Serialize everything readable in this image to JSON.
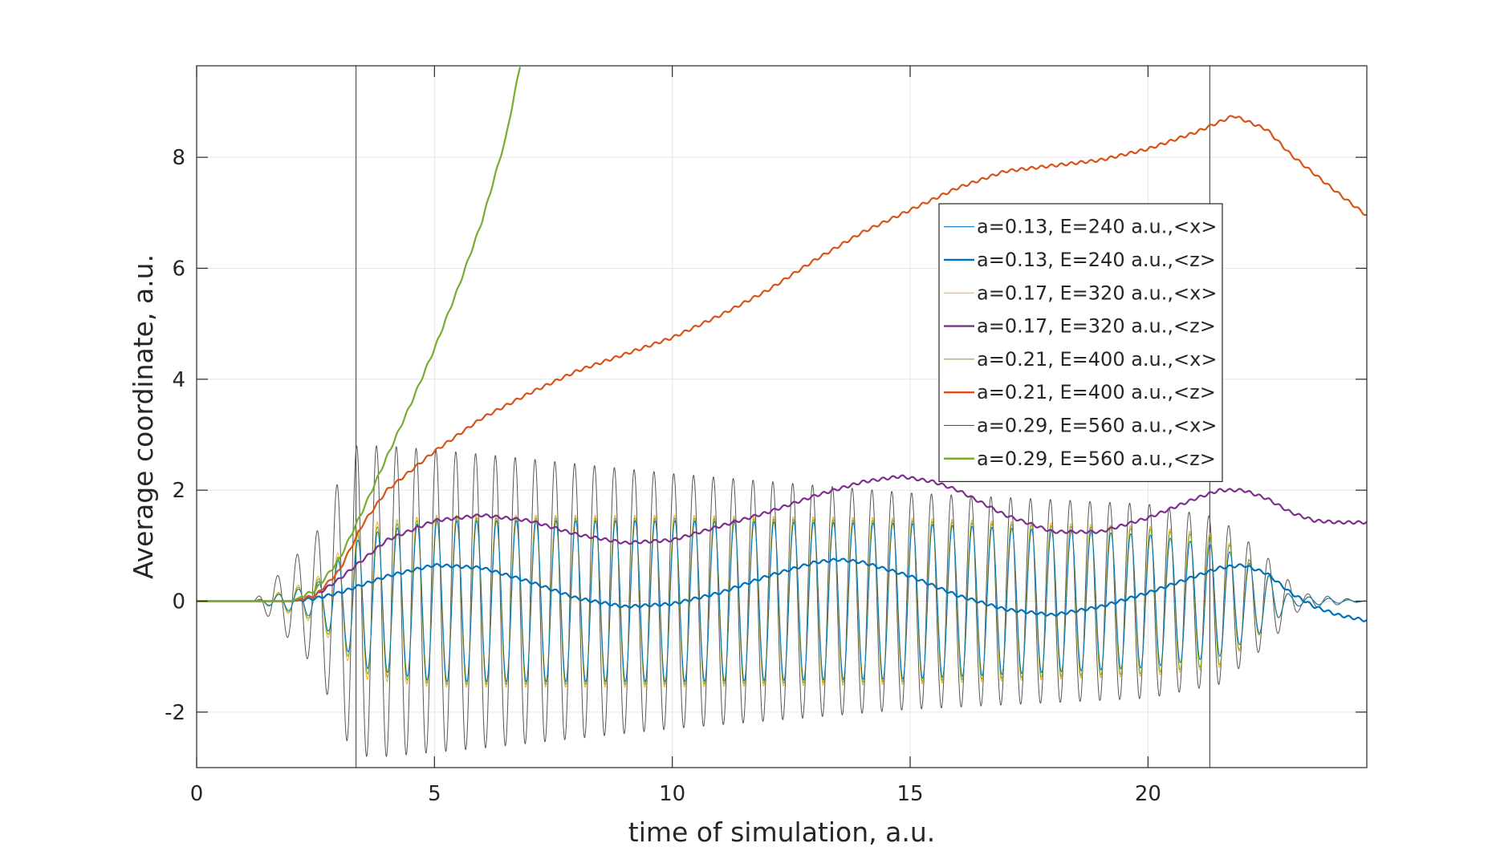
{
  "chart_data": {
    "type": "line",
    "title": "",
    "xlabel": "time of simulation, a.u.",
    "ylabel": "Average coordinate, a.u.",
    "xlim": [
      0,
      24.6
    ],
    "ylim": [
      -3,
      9.65
    ],
    "xticks": [
      0,
      5,
      10,
      15,
      20
    ],
    "xtick_labels": [
      "0",
      "5",
      "10",
      "15",
      "20"
    ],
    "yticks": [
      -2,
      0,
      2,
      4,
      6,
      8
    ],
    "ytick_labels": [
      "-2",
      "0",
      "2",
      "4",
      "6",
      "8"
    ],
    "grid": true,
    "legend_position": "right-center, upper area",
    "vertical_markers": [
      3.35,
      21.3
    ],
    "series": [
      {
        "name": "a=0.13, E=240 a.u.,<x>",
        "color": "#0072BD",
        "width": "thin",
        "kind": "oscillation",
        "envelope": {
          "t": [
            1.2,
            2.5,
            3.5,
            5,
            10,
            15,
            20,
            21.5,
            22.5,
            23,
            24.6
          ],
          "amp": [
            0,
            0.3,
            1.2,
            1.45,
            1.45,
            1.4,
            1.2,
            1.0,
            0.5,
            0.1,
            0
          ]
        },
        "frequency": 2.4
      },
      {
        "name": "a=0.13, E=240 a.u.,<z>",
        "color": "#0072BD",
        "width": "thick",
        "kind": "drift",
        "t": [
          0,
          2.0,
          2.5,
          3,
          4,
          5,
          6,
          7,
          8,
          9,
          10,
          11,
          12,
          13,
          13.5,
          14,
          15,
          16,
          17,
          18,
          19,
          20,
          21,
          21.5,
          22,
          22.5,
          23,
          23.5,
          24,
          24.6
        ],
        "v": [
          0,
          0,
          0.05,
          0.15,
          0.45,
          0.65,
          0.6,
          0.35,
          0.05,
          -0.1,
          -0.05,
          0.15,
          0.45,
          0.7,
          0.75,
          0.7,
          0.45,
          0.1,
          -0.15,
          -0.25,
          -0.1,
          0.15,
          0.45,
          0.6,
          0.65,
          0.5,
          0.15,
          -0.1,
          -0.25,
          -0.35
        ]
      },
      {
        "name": "a=0.17, E=320 a.u.,<x>",
        "color": "#EDB120",
        "width": "thin",
        "kind": "oscillation",
        "envelope": {
          "t": [
            1.2,
            2.5,
            3.5,
            5,
            10,
            15,
            20,
            21.5,
            22.5,
            23,
            24.6
          ],
          "amp": [
            0,
            0.4,
            1.4,
            1.55,
            1.55,
            1.5,
            1.35,
            1.2,
            0.5,
            0.1,
            0
          ]
        },
        "frequency": 2.4
      },
      {
        "name": "a=0.17, E=320 a.u.,<z>",
        "color": "#7E2F8E",
        "width": "thick",
        "kind": "drift",
        "t": [
          0,
          2.0,
          2.5,
          3,
          3.5,
          4,
          5,
          6,
          7,
          8,
          9,
          10,
          11,
          12,
          13,
          14,
          14.8,
          15.5,
          16,
          17,
          18,
          19,
          20,
          21,
          21.5,
          22,
          22.5,
          23,
          23.5,
          24,
          24.6
        ],
        "v": [
          0,
          0,
          0.1,
          0.4,
          0.75,
          1.1,
          1.45,
          1.55,
          1.45,
          1.2,
          1.05,
          1.1,
          1.35,
          1.6,
          1.9,
          2.15,
          2.25,
          2.15,
          2.0,
          1.55,
          1.25,
          1.25,
          1.5,
          1.85,
          2.0,
          2.0,
          1.85,
          1.6,
          1.45,
          1.42,
          1.42
        ]
      },
      {
        "name": "a=0.21, E=400 a.u.,<x>",
        "color": "#77AC30",
        "width": "thin",
        "kind": "oscillation",
        "envelope": {
          "t": [
            1.2,
            2.5,
            3.5,
            5,
            10,
            15,
            20,
            21.5,
            22.5,
            23,
            24.6
          ],
          "amp": [
            0,
            0.35,
            1.3,
            1.5,
            1.5,
            1.45,
            1.3,
            1.15,
            0.5,
            0.1,
            0
          ]
        },
        "frequency": 2.4
      },
      {
        "name": "a=0.21, E=400 a.u.,<z>",
        "color": "#D95319",
        "width": "thick",
        "kind": "drift",
        "t": [
          0,
          2.0,
          2.5,
          3,
          3.5,
          4,
          5,
          6,
          7,
          8,
          9,
          10,
          11,
          12,
          13,
          14,
          15,
          16,
          17,
          18,
          19,
          20,
          21,
          21.8,
          22.5,
          23,
          24,
          24.6
        ],
        "v": [
          0,
          0,
          0.1,
          0.55,
          1.4,
          2.0,
          2.7,
          3.3,
          3.75,
          4.15,
          4.45,
          4.75,
          5.15,
          5.6,
          6.15,
          6.65,
          7.05,
          7.45,
          7.75,
          7.85,
          7.95,
          8.15,
          8.45,
          8.75,
          8.5,
          8.05,
          7.35,
          6.95
        ]
      },
      {
        "name": "a=0.29, E=560 a.u.,<x>",
        "color": "#555555",
        "width": "thin",
        "kind": "oscillation",
        "envelope": {
          "t": [
            1.2,
            2.5,
            3.3,
            4,
            6,
            10,
            15,
            20,
            21.5,
            22.5,
            23.2,
            24.6
          ],
          "amp": [
            0,
            1.2,
            2.8,
            2.8,
            2.65,
            2.3,
            1.95,
            1.75,
            1.5,
            0.8,
            0.15,
            0
          ]
        },
        "frequency": 2.4
      },
      {
        "name": "a=0.29, E=560 a.u.,<z>",
        "color": "#77AC30",
        "width": "thick",
        "kind": "drift",
        "t": [
          0,
          2.0,
          2.5,
          3,
          3.5,
          4,
          4.5,
          5,
          5.5,
          6,
          6.5,
          6.8
        ],
        "v": [
          0,
          0,
          0.2,
          0.75,
          1.65,
          2.6,
          3.55,
          4.55,
          5.65,
          6.85,
          8.35,
          9.65
        ]
      }
    ]
  }
}
